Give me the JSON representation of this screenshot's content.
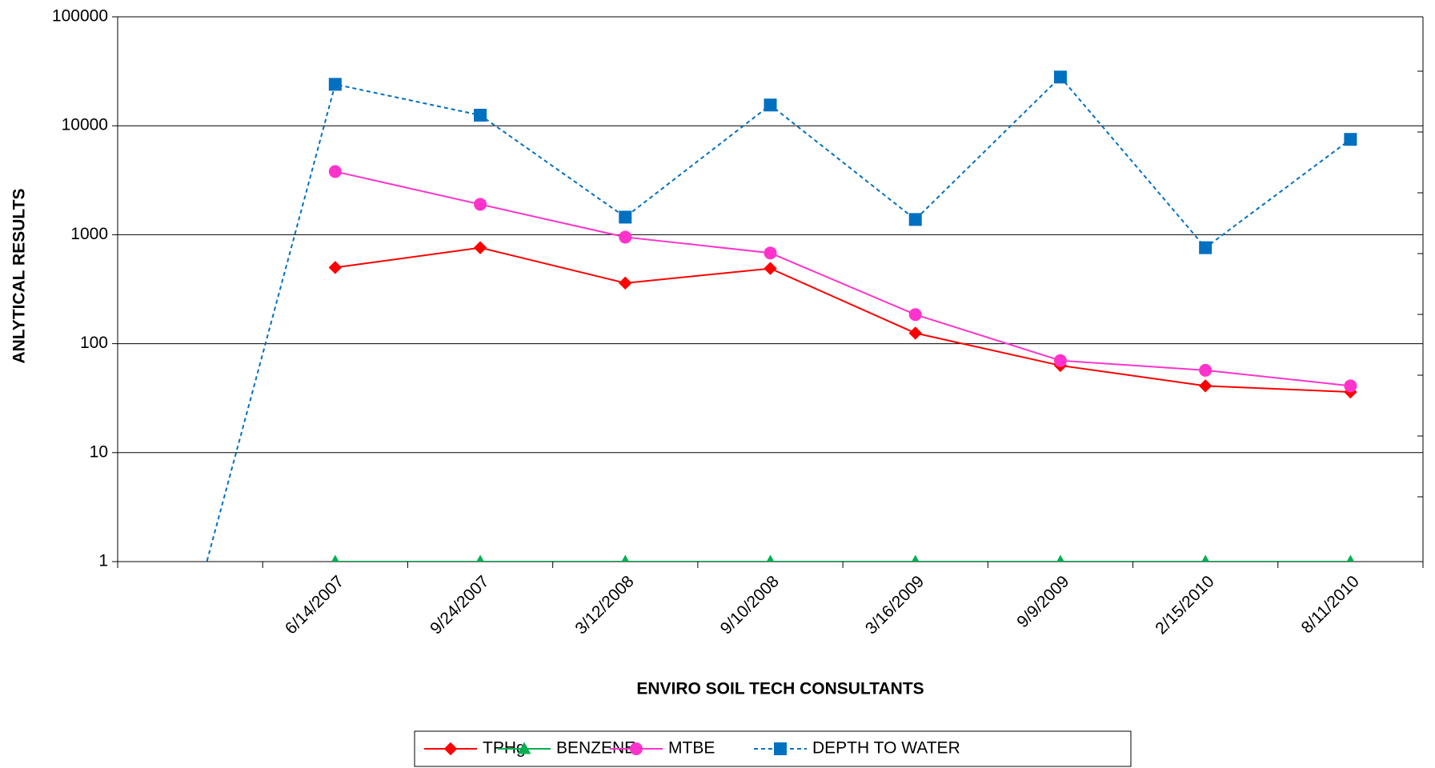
{
  "chart_data": {
    "type": "line",
    "y_label": "ANLYTICAL RESULTS",
    "x_label": "ENVIRO SOIL TECH CONSULTANTS",
    "categories": [
      null,
      "6/14/2007",
      "9/24/2007",
      "3/12/2008",
      "9/10/2008",
      "3/16/2009",
      "9/9/2009",
      "2/15/2010",
      "8/11/2010"
    ],
    "log_scale": true,
    "ylim": [
      1,
      100000
    ],
    "yticks": [
      1,
      10,
      100,
      1000,
      10000,
      100000
    ],
    "grid": true,
    "legend": "bottom",
    "series": [
      {
        "name": "TPHg",
        "color": "#ff0000",
        "marker": "diamond",
        "dash": false,
        "values": [
          null,
          500,
          760,
          360,
          490,
          125,
          63,
          41,
          36
        ]
      },
      {
        "name": "BENZENE",
        "color": "#00b050",
        "marker": "triangle",
        "dash": false,
        "values": [
          null,
          1,
          1,
          1,
          1,
          1,
          1,
          1,
          1
        ]
      },
      {
        "name": "MTBE",
        "color": "#ff33cc",
        "marker": "circle",
        "dash": false,
        "values": [
          null,
          3800,
          1900,
          950,
          680,
          185,
          70,
          57,
          41
        ]
      },
      {
        "name": "DEPTH TO WATER",
        "color": "#0070c0",
        "marker": "square",
        "dash": true,
        "values": [
          0.27,
          24000,
          12500,
          1450,
          15500,
          1380,
          28000,
          760,
          7500
        ]
      }
    ]
  }
}
